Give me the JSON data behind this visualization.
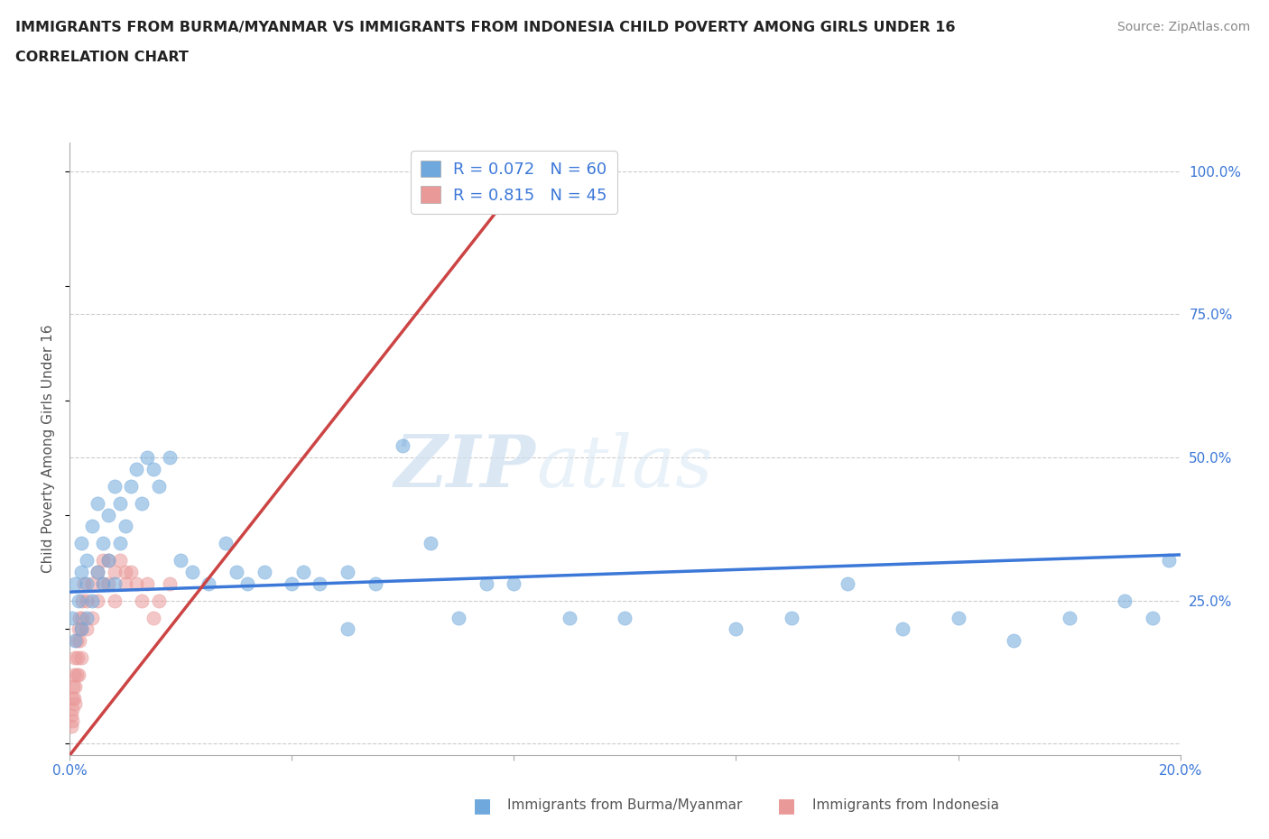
{
  "title_line1": "IMMIGRANTS FROM BURMA/MYANMAR VS IMMIGRANTS FROM INDONESIA CHILD POVERTY AMONG GIRLS UNDER 16",
  "title_line2": "CORRELATION CHART",
  "source_text": "Source: ZipAtlas.com",
  "ylabel": "Child Poverty Among Girls Under 16",
  "watermark_zip": "ZIP",
  "watermark_atlas": "atlas",
  "legend_r1": "R = 0.072",
  "legend_n1": "N = 60",
  "legend_r2": "R = 0.815",
  "legend_n2": "N = 45",
  "xmin": 0.0,
  "xmax": 0.2,
  "ymin": -0.02,
  "ymax": 1.05,
  "yticks": [
    0.0,
    0.25,
    0.5,
    0.75,
    1.0
  ],
  "ytick_labels": [
    "",
    "25.0%",
    "50.0%",
    "75.0%",
    "100.0%"
  ],
  "xticks": [
    0.0,
    0.04,
    0.08,
    0.12,
    0.16,
    0.2
  ],
  "xtick_labels": [
    "0.0%",
    "",
    "",
    "",
    "",
    "20.0%"
  ],
  "color_burma": "#6fa8dc",
  "color_indonesia": "#ea9999",
  "line_color_burma": "#3c78d8",
  "line_color_indonesia": "#cc4444",
  "background_color": "#ffffff",
  "grid_color": "#cccccc",
  "scatter_alpha": 0.55,
  "scatter_size": 120,
  "burma_x": [
    0.0005,
    0.001,
    0.001,
    0.0015,
    0.002,
    0.002,
    0.002,
    0.003,
    0.003,
    0.003,
    0.004,
    0.004,
    0.005,
    0.005,
    0.006,
    0.006,
    0.007,
    0.007,
    0.008,
    0.008,
    0.009,
    0.009,
    0.01,
    0.011,
    0.012,
    0.013,
    0.014,
    0.015,
    0.016,
    0.018,
    0.02,
    0.022,
    0.025,
    0.028,
    0.03,
    0.032,
    0.035,
    0.04,
    0.042,
    0.045,
    0.05,
    0.055,
    0.06,
    0.065,
    0.07,
    0.08,
    0.09,
    0.1,
    0.12,
    0.13,
    0.14,
    0.15,
    0.16,
    0.17,
    0.18,
    0.19,
    0.195,
    0.198,
    0.05,
    0.075
  ],
  "burma_y": [
    0.22,
    0.18,
    0.28,
    0.25,
    0.2,
    0.3,
    0.35,
    0.28,
    0.22,
    0.32,
    0.38,
    0.25,
    0.42,
    0.3,
    0.35,
    0.28,
    0.4,
    0.32,
    0.45,
    0.28,
    0.35,
    0.42,
    0.38,
    0.45,
    0.48,
    0.42,
    0.5,
    0.48,
    0.45,
    0.5,
    0.32,
    0.3,
    0.28,
    0.35,
    0.3,
    0.28,
    0.3,
    0.28,
    0.3,
    0.28,
    0.3,
    0.28,
    0.52,
    0.35,
    0.22,
    0.28,
    0.22,
    0.22,
    0.2,
    0.22,
    0.28,
    0.2,
    0.22,
    0.18,
    0.22,
    0.25,
    0.22,
    0.32,
    0.2,
    0.28
  ],
  "indonesia_x": [
    0.0002,
    0.0003,
    0.0004,
    0.0005,
    0.0005,
    0.0006,
    0.0007,
    0.0008,
    0.0009,
    0.001,
    0.001,
    0.0012,
    0.0013,
    0.0014,
    0.0015,
    0.0016,
    0.0017,
    0.0018,
    0.002,
    0.002,
    0.0022,
    0.0023,
    0.0025,
    0.003,
    0.003,
    0.004,
    0.004,
    0.005,
    0.005,
    0.006,
    0.006,
    0.007,
    0.007,
    0.008,
    0.008,
    0.009,
    0.01,
    0.01,
    0.011,
    0.012,
    0.013,
    0.014,
    0.015,
    0.016,
    0.018
  ],
  "indonesia_y": [
    0.03,
    0.05,
    0.04,
    0.08,
    0.06,
    0.1,
    0.08,
    0.12,
    0.07,
    0.1,
    0.15,
    0.12,
    0.18,
    0.15,
    0.12,
    0.2,
    0.18,
    0.22,
    0.15,
    0.2,
    0.25,
    0.22,
    0.28,
    0.2,
    0.25,
    0.28,
    0.22,
    0.3,
    0.25,
    0.32,
    0.28,
    0.32,
    0.28,
    0.3,
    0.25,
    0.32,
    0.3,
    0.28,
    0.3,
    0.28,
    0.25,
    0.28,
    0.22,
    0.25,
    0.28
  ],
  "burma_line_x": [
    0.0,
    0.2
  ],
  "burma_line_y": [
    0.265,
    0.33
  ],
  "indonesia_line_x": [
    0.0,
    0.085
  ],
  "indonesia_line_y": [
    -0.02,
    1.03
  ]
}
